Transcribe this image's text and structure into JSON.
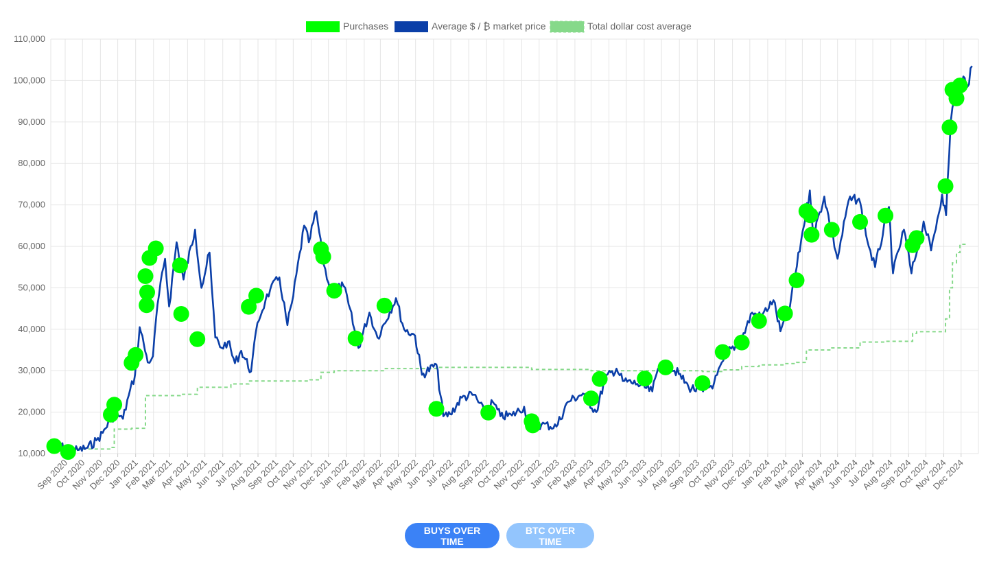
{
  "chart_data": {
    "type": "line",
    "title": "",
    "xlabel": "",
    "ylabel": "",
    "ylim": [
      10000,
      110000
    ],
    "yticks": [
      10000,
      20000,
      30000,
      40000,
      50000,
      60000,
      70000,
      80000,
      90000,
      100000,
      110000
    ],
    "ytick_labels": [
      "10,000",
      "20,000",
      "30,000",
      "40,000",
      "50,000",
      "60,000",
      "70,000",
      "80,000",
      "90,000",
      "100,000",
      "110,000"
    ],
    "xlim": [
      "2020-08-07",
      "2024-12-31"
    ],
    "xtick_labels": [
      "Sep 2020",
      "Oct 2020",
      "Nov 2020",
      "Dec 2020",
      "Jan 2021",
      "Feb 2021",
      "Mar 2021",
      "Apr 2021",
      "May 2021",
      "Jun 2021",
      "Jul 2021",
      "Aug 2021",
      "Sep 2021",
      "Oct 2021",
      "Nov 2021",
      "Dec 2021",
      "Jan 2022",
      "Feb 2022",
      "Mar 2022",
      "Apr 2022",
      "May 2022",
      "Jun 2022",
      "Jul 2022",
      "Aug 2022",
      "Sep 2022",
      "Oct 2022",
      "Nov 2022",
      "Dec 2022",
      "Jan 2023",
      "Feb 2023",
      "Mar 2023",
      "Apr 2023",
      "May 2023",
      "Jun 2023",
      "Jul 2023",
      "Aug 2023",
      "Sep 2023",
      "Oct 2023",
      "Nov 2023",
      "Dec 2023",
      "Jan 2024",
      "Feb 2024",
      "Mar 2024",
      "Apr 2024",
      "May 2024",
      "Jun 2024",
      "Jul 2024",
      "Aug 2024",
      "Sep 2024",
      "Oct 2024",
      "Nov 2024",
      "Dec 2024"
    ],
    "grid": true,
    "legend_position": "top-center",
    "colors": {
      "purchases": "#00ff00",
      "market": "#0b3fa8",
      "dca": "#86d98a",
      "grid": "#e5e5e5",
      "text": "#666666"
    },
    "series": [
      {
        "name": "Purchases",
        "type": "scatter",
        "points": [
          {
            "x": "2020-08-13",
            "y": 11800
          },
          {
            "x": "2020-09-06",
            "y": 10400
          },
          {
            "x": "2020-11-19",
            "y": 19400
          },
          {
            "x": "2020-11-25",
            "y": 21800
          },
          {
            "x": "2020-12-25",
            "y": 31900
          },
          {
            "x": "2021-01-01",
            "y": 33800
          },
          {
            "x": "2021-01-20",
            "y": 45800
          },
          {
            "x": "2021-01-18",
            "y": 52800
          },
          {
            "x": "2021-01-21",
            "y": 48900
          },
          {
            "x": "2021-01-25",
            "y": 57200
          },
          {
            "x": "2021-02-05",
            "y": 59500
          },
          {
            "x": "2021-03-19",
            "y": 55400
          },
          {
            "x": "2021-03-21",
            "y": 43700
          },
          {
            "x": "2021-04-18",
            "y": 37600
          },
          {
            "x": "2021-07-16",
            "y": 45400
          },
          {
            "x": "2021-07-29",
            "y": 48100
          },
          {
            "x": "2021-11-18",
            "y": 59300
          },
          {
            "x": "2021-11-22",
            "y": 57500
          },
          {
            "x": "2021-12-11",
            "y": 49300
          },
          {
            "x": "2022-01-17",
            "y": 37800
          },
          {
            "x": "2022-03-08",
            "y": 45700
          },
          {
            "x": "2022-06-06",
            "y": 20800
          },
          {
            "x": "2022-09-04",
            "y": 19900
          },
          {
            "x": "2022-11-18",
            "y": 17800
          },
          {
            "x": "2022-11-20",
            "y": 16800
          },
          {
            "x": "2023-03-01",
            "y": 23300
          },
          {
            "x": "2023-03-16",
            "y": 28000
          },
          {
            "x": "2023-06-02",
            "y": 28100
          },
          {
            "x": "2023-07-08",
            "y": 30800
          },
          {
            "x": "2023-09-10",
            "y": 27000
          },
          {
            "x": "2023-10-15",
            "y": 34500
          },
          {
            "x": "2023-11-17",
            "y": 36800
          },
          {
            "x": "2023-12-17",
            "y": 42000
          },
          {
            "x": "2024-01-31",
            "y": 43800
          },
          {
            "x": "2024-02-20",
            "y": 51800
          },
          {
            "x": "2024-03-08",
            "y": 68500
          },
          {
            "x": "2024-03-15",
            "y": 67500
          },
          {
            "x": "2024-03-17",
            "y": 62800
          },
          {
            "x": "2024-04-21",
            "y": 64000
          },
          {
            "x": "2024-06-09",
            "y": 65900
          },
          {
            "x": "2024-07-23",
            "y": 67400
          },
          {
            "x": "2024-09-08",
            "y": 60300
          },
          {
            "x": "2024-09-15",
            "y": 62000
          },
          {
            "x": "2024-11-04",
            "y": 74500
          },
          {
            "x": "2024-11-11",
            "y": 88700
          },
          {
            "x": "2024-11-16",
            "y": 97800
          },
          {
            "x": "2024-11-23",
            "y": 95700
          },
          {
            "x": "2024-11-29",
            "y": 98800
          }
        ]
      },
      {
        "name": "Average $ / ₿ market price",
        "type": "line",
        "points": [
          {
            "x": "2020-08-07",
            "y": 11600
          },
          {
            "x": "2020-08-20",
            "y": 12000
          },
          {
            "x": "2020-09-01",
            "y": 11200
          },
          {
            "x": "2020-09-10",
            "y": 10600
          },
          {
            "x": "2020-09-25",
            "y": 10900
          },
          {
            "x": "2020-10-10",
            "y": 11400
          },
          {
            "x": "2020-10-25",
            "y": 13200
          },
          {
            "x": "2020-11-05",
            "y": 15000
          },
          {
            "x": "2020-11-20",
            "y": 18600
          },
          {
            "x": "2020-12-01",
            "y": 19400
          },
          {
            "x": "2020-12-10",
            "y": 18400
          },
          {
            "x": "2020-12-20",
            "y": 24000
          },
          {
            "x": "2020-12-31",
            "y": 29000
          },
          {
            "x": "2021-01-08",
            "y": 40500
          },
          {
            "x": "2021-01-15",
            "y": 36500
          },
          {
            "x": "2021-01-22",
            "y": 32000
          },
          {
            "x": "2021-01-31",
            "y": 33500
          },
          {
            "x": "2021-02-08",
            "y": 46000
          },
          {
            "x": "2021-02-21",
            "y": 57000
          },
          {
            "x": "2021-02-28",
            "y": 45500
          },
          {
            "x": "2021-03-13",
            "y": 61000
          },
          {
            "x": "2021-03-25",
            "y": 52000
          },
          {
            "x": "2021-04-14",
            "y": 64000
          },
          {
            "x": "2021-04-25",
            "y": 50000
          },
          {
            "x": "2021-05-09",
            "y": 58500
          },
          {
            "x": "2021-05-13",
            "y": 50000
          },
          {
            "x": "2021-05-19",
            "y": 38000
          },
          {
            "x": "2021-05-30",
            "y": 35500
          },
          {
            "x": "2021-06-10",
            "y": 37000
          },
          {
            "x": "2021-06-22",
            "y": 31800
          },
          {
            "x": "2021-07-03",
            "y": 34800
          },
          {
            "x": "2021-07-20",
            "y": 29800
          },
          {
            "x": "2021-07-31",
            "y": 41500
          },
          {
            "x": "2021-08-14",
            "y": 47000
          },
          {
            "x": "2021-08-22",
            "y": 49500
          },
          {
            "x": "2021-09-07",
            "y": 52500
          },
          {
            "x": "2021-09-21",
            "y": 41000
          },
          {
            "x": "2021-10-01",
            "y": 48000
          },
          {
            "x": "2021-10-20",
            "y": 65000
          },
          {
            "x": "2021-10-28",
            "y": 61000
          },
          {
            "x": "2021-11-10",
            "y": 68500
          },
          {
            "x": "2021-11-20",
            "y": 58000
          },
          {
            "x": "2021-12-04",
            "y": 49000
          },
          {
            "x": "2021-12-27",
            "y": 50500
          },
          {
            "x": "2022-01-05",
            "y": 46000
          },
          {
            "x": "2022-01-22",
            "y": 35500
          },
          {
            "x": "2022-02-10",
            "y": 44000
          },
          {
            "x": "2022-02-24",
            "y": 38000
          },
          {
            "x": "2022-03-28",
            "y": 47500
          },
          {
            "x": "2022-04-11",
            "y": 40000
          },
          {
            "x": "2022-04-30",
            "y": 38500
          },
          {
            "x": "2022-05-12",
            "y": 29000
          },
          {
            "x": "2022-06-06",
            "y": 31500
          },
          {
            "x": "2022-06-18",
            "y": 19000
          },
          {
            "x": "2022-06-30",
            "y": 19500
          },
          {
            "x": "2022-07-20",
            "y": 23500
          },
          {
            "x": "2022-08-10",
            "y": 24200
          },
          {
            "x": "2022-08-28",
            "y": 20000
          },
          {
            "x": "2022-09-12",
            "y": 22400
          },
          {
            "x": "2022-09-25",
            "y": 19000
          },
          {
            "x": "2022-10-15",
            "y": 19200
          },
          {
            "x": "2022-11-05",
            "y": 21300
          },
          {
            "x": "2022-11-10",
            "y": 16500
          },
          {
            "x": "2022-12-05",
            "y": 17000
          },
          {
            "x": "2022-12-31",
            "y": 16500
          },
          {
            "x": "2023-01-20",
            "y": 22500
          },
          {
            "x": "2023-02-15",
            "y": 24500
          },
          {
            "x": "2023-03-10",
            "y": 20000
          },
          {
            "x": "2023-03-25",
            "y": 28000
          },
          {
            "x": "2023-04-14",
            "y": 30500
          },
          {
            "x": "2023-04-25",
            "y": 27500
          },
          {
            "x": "2023-05-20",
            "y": 26800
          },
          {
            "x": "2023-06-15",
            "y": 25000
          },
          {
            "x": "2023-06-25",
            "y": 30500
          },
          {
            "x": "2023-07-13",
            "y": 31500
          },
          {
            "x": "2023-07-31",
            "y": 29200
          },
          {
            "x": "2023-08-17",
            "y": 26000
          },
          {
            "x": "2023-09-11",
            "y": 25000
          },
          {
            "x": "2023-09-30",
            "y": 27000
          },
          {
            "x": "2023-10-24",
            "y": 34500
          },
          {
            "x": "2023-11-15",
            "y": 37000
          },
          {
            "x": "2023-12-05",
            "y": 44000
          },
          {
            "x": "2023-12-20",
            "y": 43000
          },
          {
            "x": "2024-01-11",
            "y": 47000
          },
          {
            "x": "2024-01-23",
            "y": 39500
          },
          {
            "x": "2024-02-08",
            "y": 45000
          },
          {
            "x": "2024-02-28",
            "y": 61500
          },
          {
            "x": "2024-03-14",
            "y": 73500
          },
          {
            "x": "2024-03-20",
            "y": 62500
          },
          {
            "x": "2024-04-08",
            "y": 72000
          },
          {
            "x": "2024-04-20",
            "y": 64000
          },
          {
            "x": "2024-05-01",
            "y": 57000
          },
          {
            "x": "2024-05-20",
            "y": 71000
          },
          {
            "x": "2024-06-07",
            "y": 71500
          },
          {
            "x": "2024-06-24",
            "y": 60000
          },
          {
            "x": "2024-07-05",
            "y": 55000
          },
          {
            "x": "2024-07-29",
            "y": 69500
          },
          {
            "x": "2024-08-05",
            "y": 53500
          },
          {
            "x": "2024-08-24",
            "y": 64000
          },
          {
            "x": "2024-09-06",
            "y": 53500
          },
          {
            "x": "2024-09-27",
            "y": 66000
          },
          {
            "x": "2024-10-10",
            "y": 59000
          },
          {
            "x": "2024-10-29",
            "y": 72500
          },
          {
            "x": "2024-11-05",
            "y": 67500
          },
          {
            "x": "2024-11-13",
            "y": 90000
          },
          {
            "x": "2024-11-22",
            "y": 99000
          },
          {
            "x": "2024-11-28",
            "y": 95000
          },
          {
            "x": "2024-12-05",
            "y": 101000
          },
          {
            "x": "2024-12-12",
            "y": 98500
          },
          {
            "x": "2024-12-20",
            "y": 103500
          }
        ]
      },
      {
        "name": "Total dollar cost average",
        "type": "step",
        "points": [
          {
            "x": "2020-08-13",
            "y": 11800
          },
          {
            "x": "2020-09-06",
            "y": 11100
          },
          {
            "x": "2020-11-19",
            "y": 11500
          },
          {
            "x": "2020-11-25",
            "y": 15900
          },
          {
            "x": "2020-12-25",
            "y": 16100
          },
          {
            "x": "2021-01-18",
            "y": 24000
          },
          {
            "x": "2021-03-19",
            "y": 24300
          },
          {
            "x": "2021-04-18",
            "y": 26000
          },
          {
            "x": "2021-06-15",
            "y": 26800
          },
          {
            "x": "2021-07-16",
            "y": 27500
          },
          {
            "x": "2021-10-30",
            "y": 27800
          },
          {
            "x": "2021-11-18",
            "y": 29600
          },
          {
            "x": "2021-12-11",
            "y": 30000
          },
          {
            "x": "2022-03-08",
            "y": 30500
          },
          {
            "x": "2022-06-06",
            "y": 30800
          },
          {
            "x": "2022-11-18",
            "y": 30300
          },
          {
            "x": "2023-03-01",
            "y": 30000
          },
          {
            "x": "2023-09-10",
            "y": 29800
          },
          {
            "x": "2023-10-15",
            "y": 30200
          },
          {
            "x": "2023-11-17",
            "y": 31000
          },
          {
            "x": "2023-12-17",
            "y": 31400
          },
          {
            "x": "2024-01-31",
            "y": 31700
          },
          {
            "x": "2024-02-20",
            "y": 32000
          },
          {
            "x": "2024-03-08",
            "y": 35000
          },
          {
            "x": "2024-04-21",
            "y": 35500
          },
          {
            "x": "2024-06-09",
            "y": 36900
          },
          {
            "x": "2024-07-23",
            "y": 37100
          },
          {
            "x": "2024-09-08",
            "y": 39000
          },
          {
            "x": "2024-09-15",
            "y": 39400
          },
          {
            "x": "2024-11-04",
            "y": 42500
          },
          {
            "x": "2024-11-11",
            "y": 50000
          },
          {
            "x": "2024-11-16",
            "y": 56000
          },
          {
            "x": "2024-11-23",
            "y": 58500
          },
          {
            "x": "2024-11-29",
            "y": 60500
          },
          {
            "x": "2024-12-12",
            "y": 60500
          }
        ]
      }
    ]
  },
  "buttons": {
    "buys_over_time": "BUYS OVER TIME",
    "btc_over_time": "BTC OVER TIME"
  }
}
